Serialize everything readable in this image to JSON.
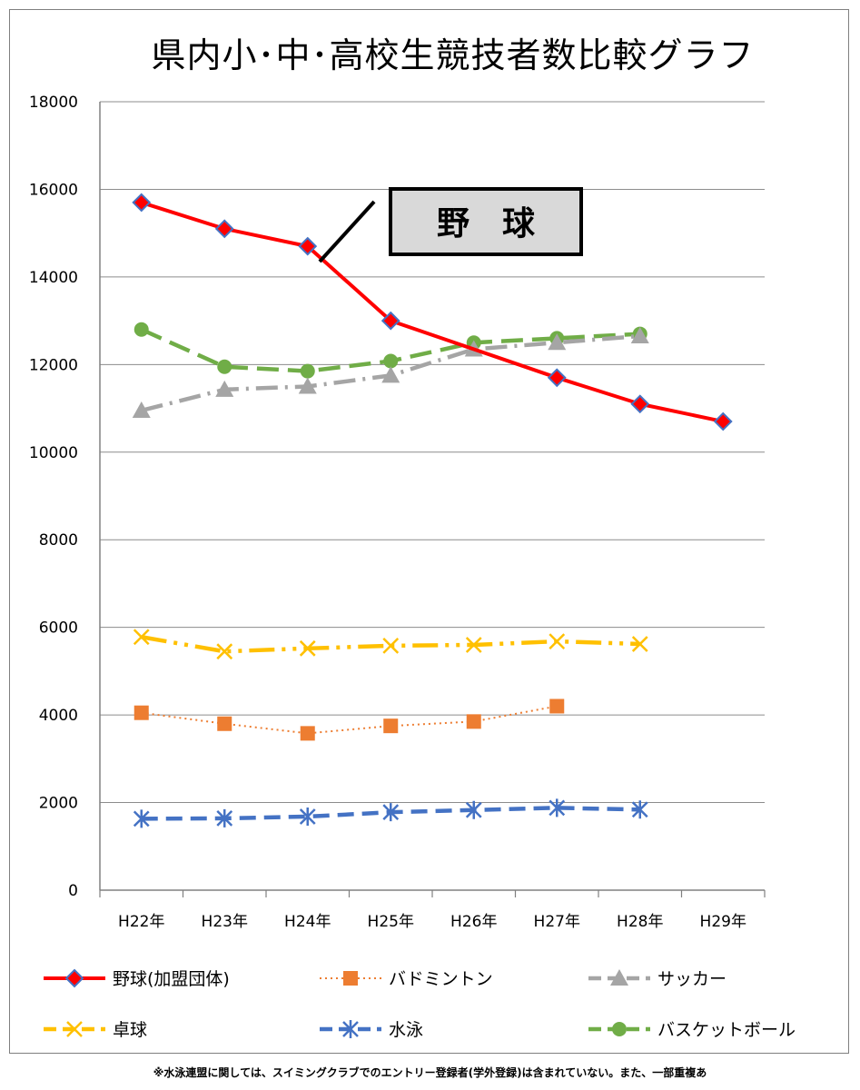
{
  "chart_data": {
    "type": "line",
    "title": "県内小･中･高校生競技者数比較グラフ",
    "categories": [
      "H22年",
      "H23年",
      "H24年",
      "H25年",
      "H26年",
      "H27年",
      "H28年",
      "H29年"
    ],
    "ylim": [
      0,
      18000
    ],
    "yticks": [
      0,
      2000,
      4000,
      6000,
      8000,
      10000,
      12000,
      14000,
      16000,
      18000
    ],
    "grid": true,
    "legend_position": "bottom",
    "series": [
      {
        "name": "野球(加盟団体)",
        "color": "#ff0000",
        "style": "solid",
        "marker": "diamond",
        "values": [
          15700,
          15100,
          14700,
          13000,
          null,
          11700,
          11100,
          10700
        ]
      },
      {
        "name": "バドミントン",
        "color": "#ed7d31",
        "style": "dotted",
        "marker": "square",
        "values": [
          4050,
          3800,
          3580,
          3750,
          3850,
          4200,
          null,
          null
        ]
      },
      {
        "name": "サッカー",
        "color": "#a5a5a5",
        "style": "dashdot",
        "marker": "triangle",
        "values": [
          10950,
          11430,
          11500,
          11750,
          12350,
          12500,
          12650,
          null
        ]
      },
      {
        "name": "卓球",
        "color": "#ffc000",
        "style": "dashdotdot",
        "marker": "x",
        "values": [
          5780,
          5450,
          5520,
          5580,
          5600,
          5680,
          5620,
          null
        ]
      },
      {
        "name": "水泳",
        "color": "#4472c4",
        "style": "dashed",
        "marker": "star",
        "values": [
          1630,
          1640,
          1680,
          1780,
          1830,
          1880,
          1840,
          null
        ]
      },
      {
        "name": "バスケットボール",
        "color": "#70ad47",
        "style": "longdash",
        "marker": "circle",
        "values": [
          12800,
          11950,
          11850,
          12080,
          12500,
          12600,
          12700,
          null
        ]
      }
    ],
    "annotation": {
      "text": "野　球",
      "points_to_series": "野球(加盟団体)"
    }
  },
  "footnote": "※水泳連盟に関しては、スイミングクラブでのエントリー登録者(学外登録)は含まれていない。また、一部重複あ"
}
